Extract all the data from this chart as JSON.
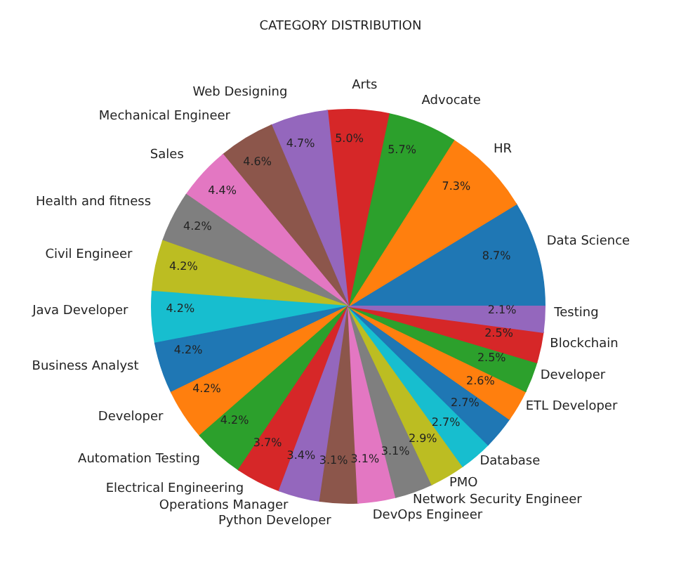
{
  "chart_data": {
    "type": "pie",
    "title": "CATEGORY DISTRIBUTION",
    "categories": [
      "Data Science",
      "HR",
      "Advocate",
      "Arts",
      "Web Designing",
      "Mechanical Engineer",
      "Sales",
      "Health and fitness",
      "Civil Engineer",
      "Java Developer",
      "Business Analyst",
      "Developer",
      "Automation Testing",
      "Electrical Engineering",
      "Operations Manager",
      "Python Developer",
      "DevOps Engineer",
      "Network Security Engineer",
      "PMO",
      "Database",
      null,
      "ETL Developer",
      "Developer",
      "Blockchain",
      "Testing"
    ],
    "values": [
      8.7,
      7.3,
      5.7,
      5.0,
      4.7,
      4.6,
      4.4,
      4.2,
      4.2,
      4.2,
      4.2,
      4.2,
      4.2,
      3.7,
      3.4,
      3.1,
      3.1,
      3.1,
      2.9,
      2.7,
      2.7,
      2.6,
      2.5,
      2.5,
      2.1
    ],
    "value_labels": [
      "8.7%",
      "7.3%",
      "5.7%",
      "5.0%",
      "4.7%",
      "4.6%",
      "4.4%",
      "4.2%",
      "4.2%",
      "4.2%",
      "4.2%",
      "4.2%",
      "4.2%",
      "3.7%",
      "3.4%",
      "3.1%",
      "3.1%",
      "3.1%",
      "2.9%",
      "2.7%",
      "2.7%",
      "2.6%",
      "2.5%",
      "2.5%",
      "2.1%"
    ],
    "colors": [
      "#1f77b4",
      "#ff7f0e",
      "#2ca02c",
      "#d62728",
      "#9467bd",
      "#8c564b",
      "#e377c2",
      "#7f7f7f",
      "#bcbd22",
      "#17becf",
      "#1f77b4",
      "#ff7f0e",
      "#2ca02c",
      "#d62728",
      "#9467bd",
      "#8c564b",
      "#e377c2",
      "#7f7f7f",
      "#bcbd22",
      "#17becf",
      "#1f77b4",
      "#ff7f0e",
      "#2ca02c",
      "#d62728",
      "#9467bd"
    ]
  }
}
